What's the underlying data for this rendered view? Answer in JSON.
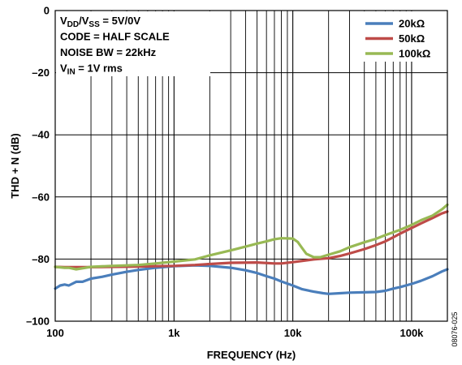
{
  "chart_data": {
    "type": "line",
    "xlabel": "FREQUENCY (Hz)",
    "ylabel": "THD + N (dB)",
    "x_scale": "log",
    "xlim": [
      100,
      200000
    ],
    "ylim": [
      -100,
      0
    ],
    "grid": true,
    "legend_position": "top-right",
    "x_ticks": [
      {
        "value": 100,
        "label": "100"
      },
      {
        "value": 1000,
        "label": "1k"
      },
      {
        "value": 10000,
        "label": "10k"
      },
      {
        "value": 100000,
        "label": "100k"
      }
    ],
    "y_ticks": [
      {
        "value": 0,
        "label": "0"
      },
      {
        "value": -20,
        "label": "–20"
      },
      {
        "value": -40,
        "label": "–40"
      },
      {
        "value": -60,
        "label": "–60"
      },
      {
        "value": -80,
        "label": "–80"
      },
      {
        "value": -100,
        "label": "–100"
      }
    ],
    "conditions": [
      {
        "parts": [
          {
            "t": "V"
          },
          {
            "t": "DD",
            "sub": true
          },
          {
            "t": "/V"
          },
          {
            "t": "SS",
            "sub": true
          },
          {
            "t": " = 5V/0V"
          }
        ]
      },
      {
        "parts": [
          {
            "t": "CODE = HALF SCALE"
          }
        ]
      },
      {
        "parts": [
          {
            "t": "NOISE BW = 22kHz"
          }
        ]
      },
      {
        "parts": [
          {
            "t": "V"
          },
          {
            "t": "IN",
            "sub": true
          },
          {
            "t": " = 1V rms"
          }
        ]
      }
    ],
    "figure_id": "08076-025",
    "series": [
      {
        "name": "20kΩ",
        "color": "#4a7ebb",
        "x": [
          100,
          110,
          120,
          130,
          150,
          170,
          200,
          250,
          300,
          400,
          500,
          700,
          1000,
          1500,
          2000,
          3000,
          4000,
          5000,
          6000,
          7000,
          8000,
          10000,
          12000,
          15000,
          18000,
          20000,
          25000,
          30000,
          40000,
          50000,
          60000,
          70000,
          80000,
          100000,
          120000,
          150000,
          180000,
          200000
        ],
        "y": [
          -89.5,
          -88.5,
          -88.2,
          -88.5,
          -87.3,
          -87.3,
          -86.3,
          -85.7,
          -85.0,
          -84.1,
          -83.5,
          -82.8,
          -82.3,
          -82.0,
          -82.2,
          -82.8,
          -83.6,
          -84.5,
          -85.5,
          -86.3,
          -87.2,
          -88.5,
          -89.7,
          -90.5,
          -91.0,
          -91.2,
          -91.0,
          -90.8,
          -90.7,
          -90.6,
          -90.2,
          -89.5,
          -89.0,
          -88.0,
          -87.0,
          -85.5,
          -84.0,
          -83.3
        ]
      },
      {
        "name": "50kΩ",
        "color": "#be4b48",
        "x": [
          100,
          120,
          150,
          200,
          300,
          500,
          700,
          1000,
          1500,
          2000,
          3000,
          5000,
          7000,
          8000,
          10000,
          12000,
          15000,
          20000,
          25000,
          30000,
          40000,
          50000,
          60000,
          70000,
          80000,
          100000,
          120000,
          150000,
          180000,
          200000
        ],
        "y": [
          -82.5,
          -82.6,
          -82.6,
          -82.6,
          -82.5,
          -82.4,
          -82.3,
          -82.2,
          -81.9,
          -81.6,
          -81.2,
          -81.1,
          -81.4,
          -81.4,
          -81.0,
          -80.6,
          -80.1,
          -79.7,
          -79.0,
          -78.2,
          -76.8,
          -75.5,
          -74.3,
          -73.0,
          -71.8,
          -70.0,
          -68.5,
          -66.8,
          -65.3,
          -64.7
        ]
      },
      {
        "name": "100kΩ",
        "color": "#98b954",
        "x": [
          100,
          120,
          130,
          150,
          200,
          300,
          500,
          700,
          1000,
          1500,
          2000,
          3000,
          4000,
          5000,
          6000,
          7000,
          8000,
          10000,
          11000,
          12000,
          13000,
          15000,
          17000,
          20000,
          25000,
          30000,
          40000,
          50000,
          60000,
          80000,
          100000,
          120000,
          150000,
          180000,
          200000
        ],
        "y": [
          -82.5,
          -82.8,
          -82.8,
          -83.3,
          -82.5,
          -82.2,
          -81.9,
          -81.4,
          -80.8,
          -80.1,
          -78.8,
          -77.2,
          -76.0,
          -75.0,
          -74.3,
          -73.6,
          -73.3,
          -73.4,
          -74.5,
          -76.5,
          -78.3,
          -79.4,
          -79.4,
          -78.6,
          -77.5,
          -76.2,
          -74.6,
          -73.5,
          -72.3,
          -70.6,
          -69.0,
          -67.5,
          -66.0,
          -64.0,
          -62.5
        ]
      }
    ]
  }
}
